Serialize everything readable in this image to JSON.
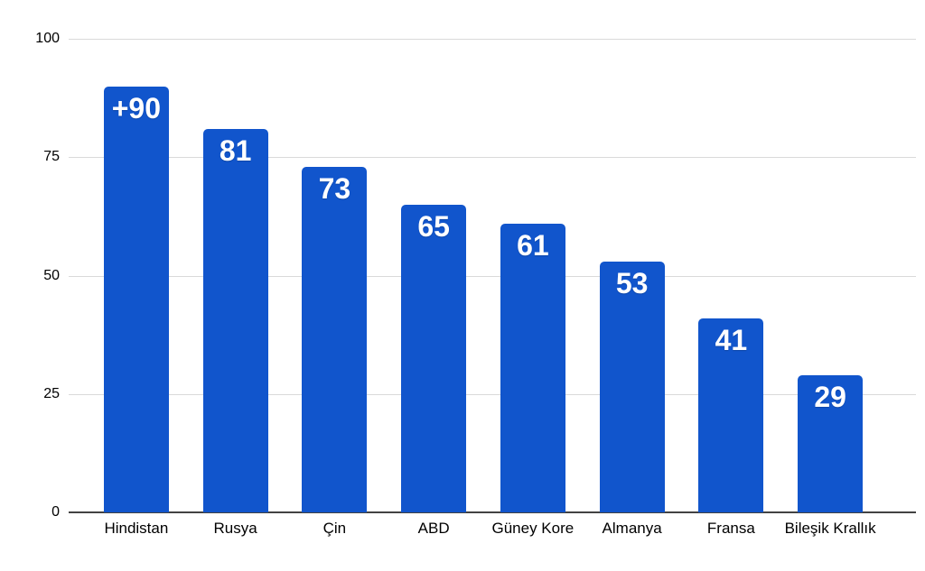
{
  "chart_data": {
    "type": "bar",
    "title": "",
    "xlabel": "",
    "ylabel": "",
    "categories": [
      "Hindistan",
      "Rusya",
      "Çin",
      "ABD",
      "Güney Kore",
      "Almanya",
      "Fransa",
      "Bileşik Krallık"
    ],
    "values": [
      90,
      81,
      73,
      65,
      61,
      53,
      41,
      29
    ],
    "bar_labels": [
      "+90",
      "81",
      "73",
      "65",
      "61",
      "53",
      "41",
      "29"
    ],
    "ylim": [
      0,
      100
    ],
    "yticks": [
      "0",
      "25",
      "50",
      "75",
      "100"
    ],
    "ytick_values": [
      0,
      25,
      50,
      75,
      100
    ],
    "grid": true,
    "legend": false,
    "colors": {
      "bar": "#1155cc",
      "bar_value_text": "#ffffff",
      "gridline": "#dadada",
      "axis_baseline": "#424242",
      "axis_text": "#000000",
      "background": "#ffffff"
    }
  }
}
